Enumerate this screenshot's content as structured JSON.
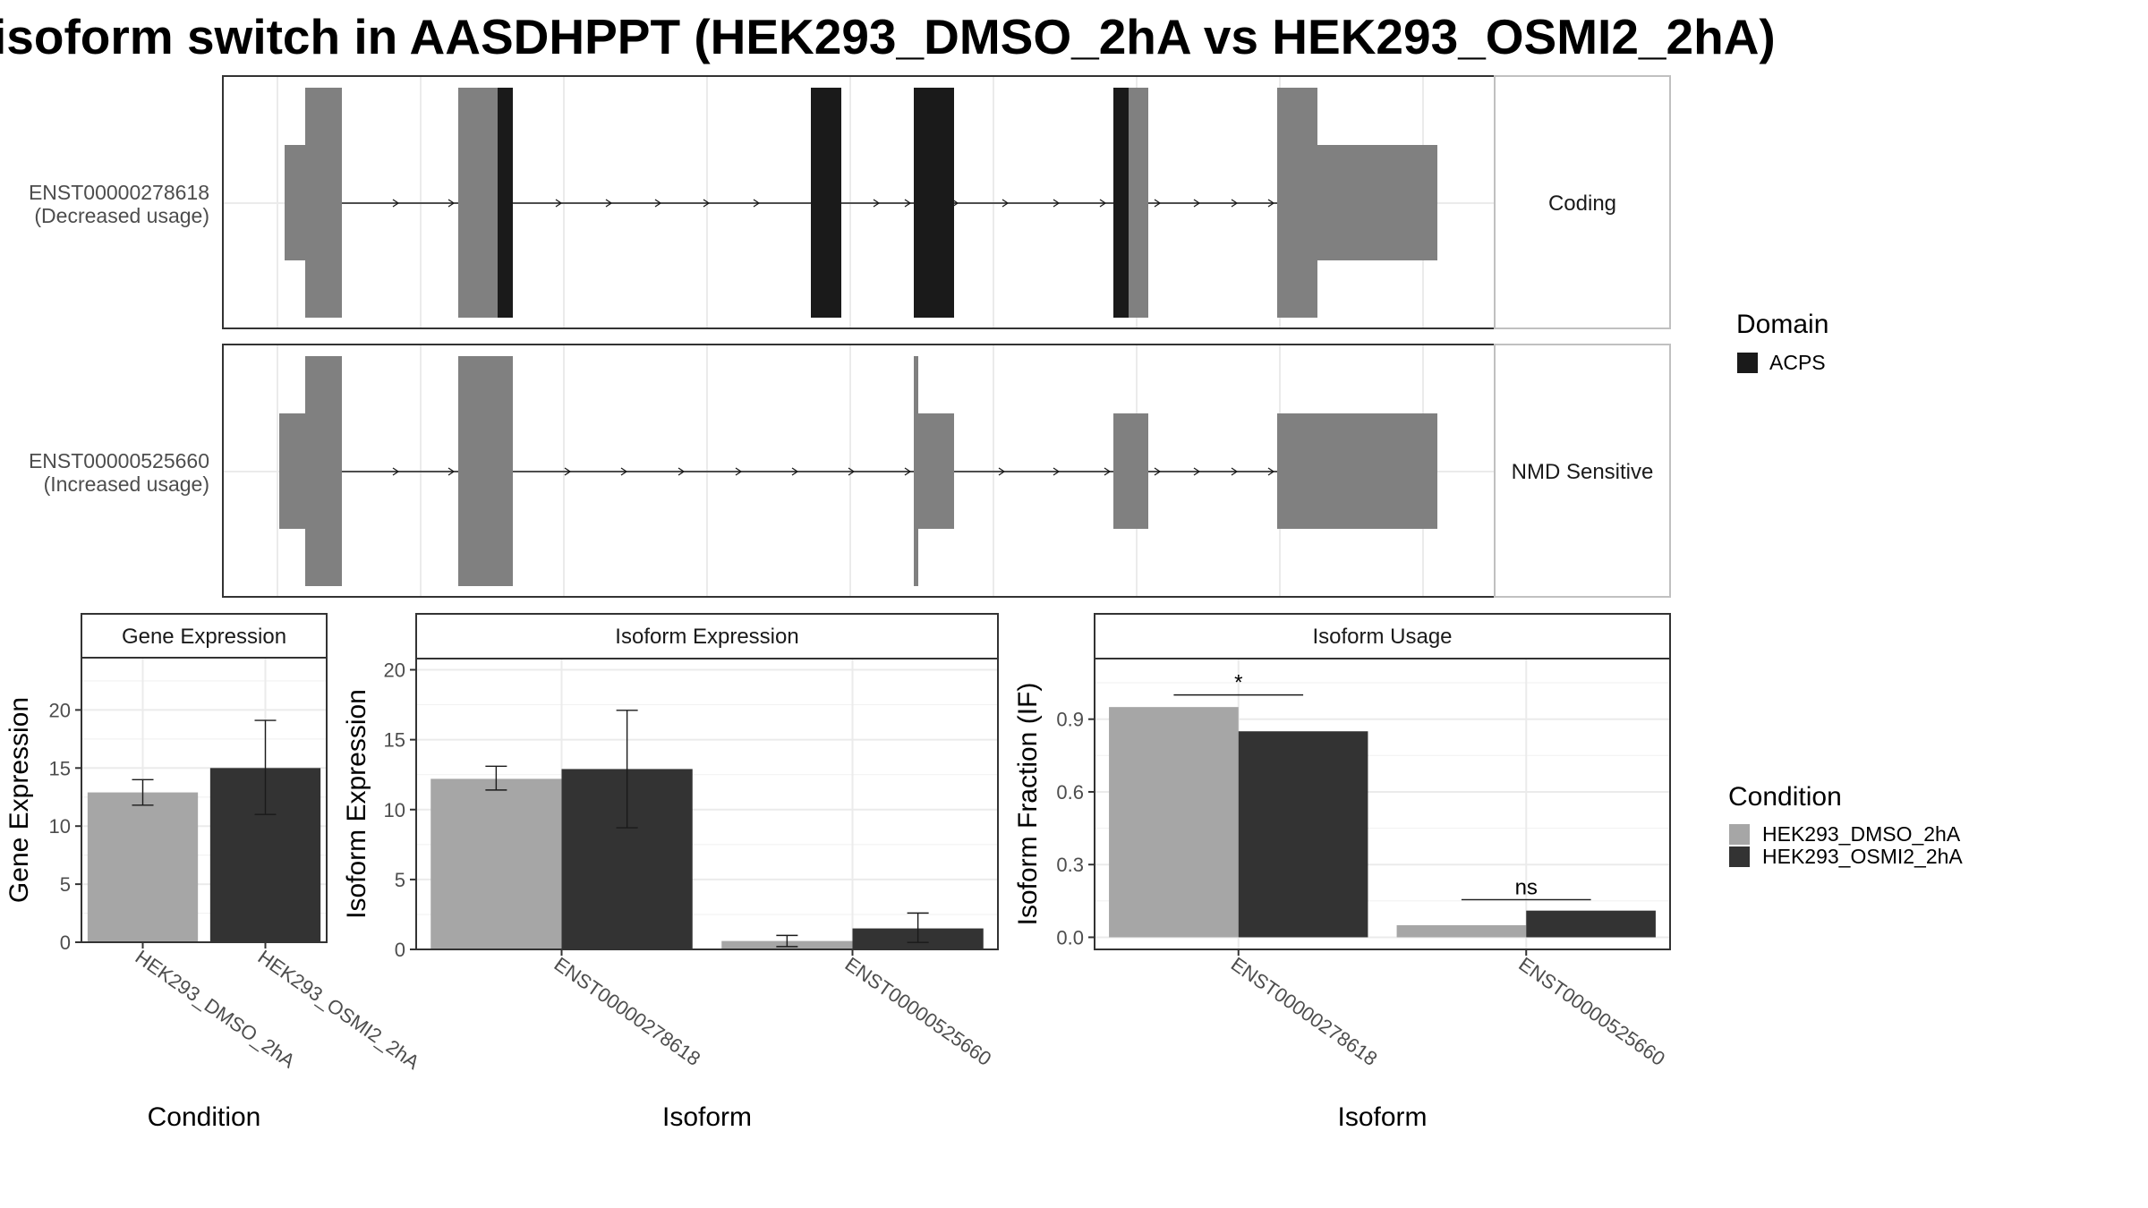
{
  "title": "isoform switch in AASDHPPT (HEK293_DMSO_2hA vs HEK293_OSMI2_2hA)",
  "colors": {
    "exon": "#808080",
    "domain_acps": "#1a1a1a",
    "condition_1": "#a6a6a6",
    "condition_2": "#333333",
    "grid": "#ebebeb",
    "panel_border": "#333333",
    "strip_border": "#c0c0c0"
  },
  "chart_data": [
    {
      "type": "gene_structure",
      "tracks": [
        {
          "id": "ENST00000278618",
          "label_line1": "ENST00000278618",
          "label_line2": "(Decreased usage)",
          "category": "Coding"
        },
        {
          "id": "ENST00000525660",
          "label_line1": "ENST00000525660",
          "label_line2": "(Increased usage)",
          "category": "NMD Sensitive"
        }
      ],
      "legend": {
        "title": "Domain",
        "items": [
          {
            "name": "ACPS",
            "color": "#1a1a1a"
          }
        ]
      }
    },
    {
      "type": "bar",
      "strip": "Gene Expression",
      "xlabel": "Condition",
      "ylabel": "Gene Expression",
      "ylim": [
        0,
        24.5
      ],
      "yticks": [
        0,
        5,
        10,
        15,
        20
      ],
      "categories": [
        "HEK293_DMSO_2hA",
        "HEK293_OSMI2_2hA"
      ],
      "values": [
        12.9,
        15.0
      ],
      "error_low": [
        11.8,
        11.0
      ],
      "error_high": [
        14.0,
        19.1
      ]
    },
    {
      "type": "bar",
      "strip": "Isoform Expression",
      "xlabel": "Isoform",
      "ylabel": "Isoform Expression",
      "ylim": [
        0,
        20.8
      ],
      "yticks": [
        0,
        5,
        10,
        15,
        20
      ],
      "categories": [
        "ENST00000278618",
        "ENST00000525660"
      ],
      "series": [
        {
          "name": "HEK293_DMSO_2hA",
          "values": [
            12.2,
            0.6
          ],
          "error_low": [
            11.4,
            0.2
          ],
          "error_high": [
            13.1,
            1.0
          ]
        },
        {
          "name": "HEK293_OSMI2_2hA",
          "values": [
            12.9,
            1.5
          ],
          "error_low": [
            8.7,
            0.5
          ],
          "error_high": [
            17.1,
            2.6
          ]
        }
      ]
    },
    {
      "type": "bar",
      "strip": "Isoform Usage",
      "xlabel": "Isoform",
      "ylabel": "Isoform Fraction (IF)",
      "ylim": [
        -0.05,
        1.15
      ],
      "yticks": [
        0.0,
        0.3,
        0.6,
        0.9
      ],
      "ytick_labels": [
        "0.0",
        "0.3",
        "0.6",
        "0.9"
      ],
      "categories": [
        "ENST00000278618",
        "ENST00000525660"
      ],
      "series": [
        {
          "name": "HEK293_DMSO_2hA",
          "values": [
            0.95,
            0.05
          ]
        },
        {
          "name": "HEK293_OSMI2_2hA",
          "values": [
            0.85,
            0.11
          ]
        }
      ],
      "significance": [
        {
          "category": "ENST00000278618",
          "label": "*",
          "y": 1.0
        },
        {
          "category": "ENST00000525660",
          "label": "ns",
          "y": 0.155
        }
      ]
    }
  ],
  "condition_legend": {
    "title": "Condition",
    "items": [
      {
        "name": "HEK293_DMSO_2hA",
        "color": "#a6a6a6"
      },
      {
        "name": "HEK293_OSMI2_2hA",
        "color": "#333333"
      }
    ]
  }
}
